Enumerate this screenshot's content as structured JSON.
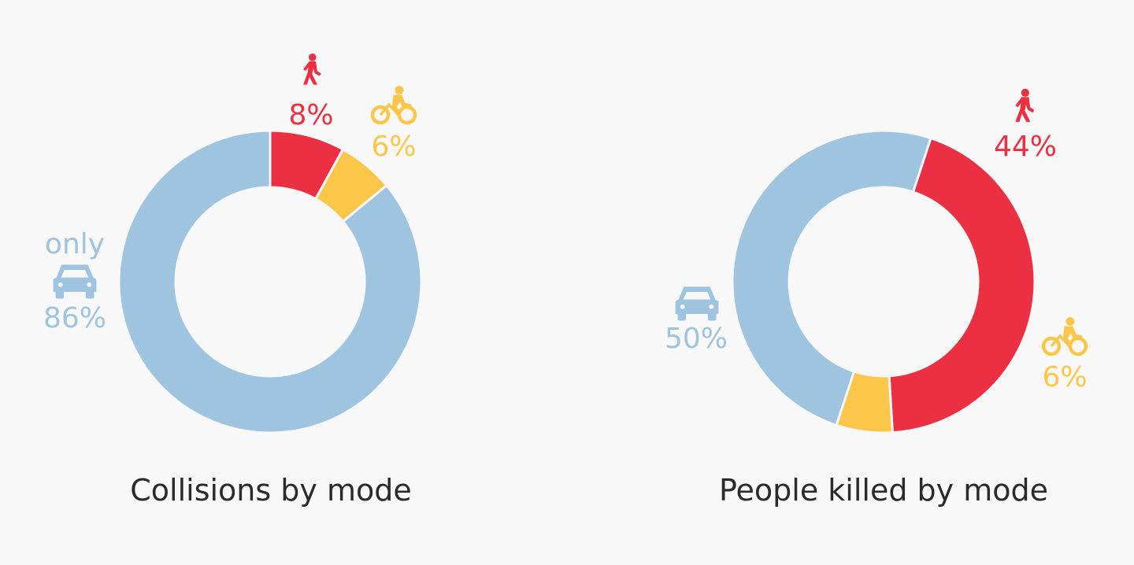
{
  "colors": {
    "car": "#9fc4df",
    "pedestrian": "#ec3044",
    "bicycle": "#fcc64b",
    "background": "#f8f8f8",
    "title": "#2b2b2b"
  },
  "chart_data": [
    {
      "type": "pie",
      "variant": "donut",
      "title": "Collisions by mode",
      "slices": [
        {
          "key": "pedestrian",
          "icon": "pedestrian-icon",
          "value": 8,
          "label": "8%"
        },
        {
          "key": "bicycle",
          "icon": "bicycle-icon",
          "value": 6,
          "label": "6%"
        },
        {
          "key": "car",
          "icon": "car-icon",
          "value": 86,
          "label": "86%",
          "prefix": "only"
        }
      ]
    },
    {
      "type": "pie",
      "variant": "donut",
      "title": "People killed by mode",
      "slices": [
        {
          "key": "pedestrian",
          "icon": "pedestrian-icon",
          "value": 44,
          "label": "44%"
        },
        {
          "key": "bicycle",
          "icon": "bicycle-icon",
          "value": 6,
          "label": "6%"
        },
        {
          "key": "car",
          "icon": "car-icon",
          "value": 50,
          "label": "50%"
        }
      ]
    }
  ]
}
